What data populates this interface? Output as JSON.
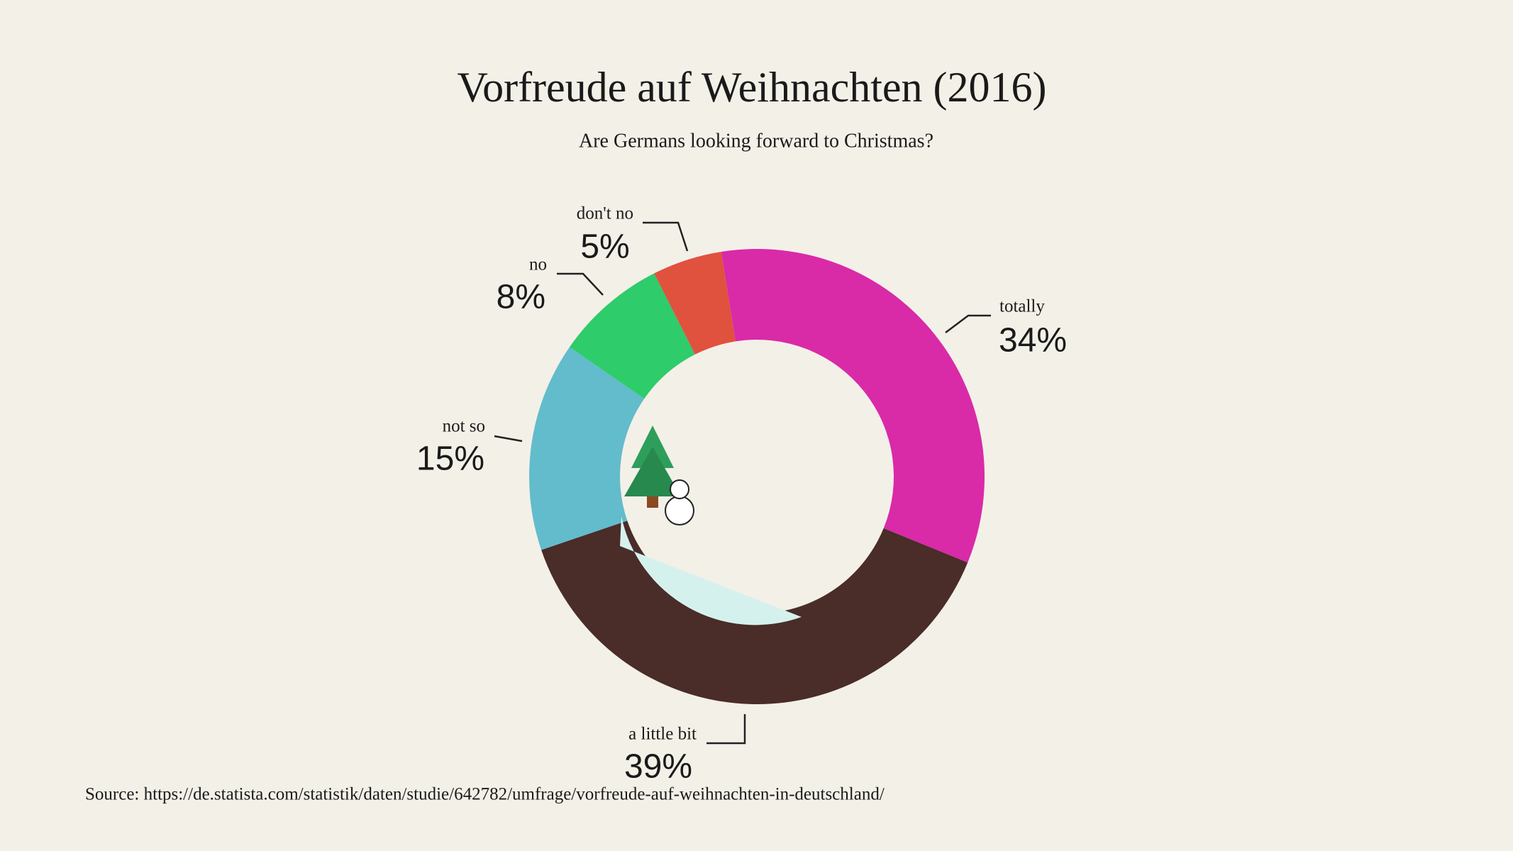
{
  "chart_data": {
    "type": "pie",
    "title": "Vorfreude auf Weihnachten (2016)",
    "subtitle": "Are Germans looking forward to Christmas?",
    "categories": [
      "totally",
      "a little bit",
      "not so",
      "no",
      "don't no"
    ],
    "values": [
      34,
      39,
      15,
      8,
      5
    ],
    "value_labels": [
      "34%",
      "39%",
      "15%",
      "8%",
      "5%"
    ],
    "colors": [
      "#d92aa8",
      "#4a2c28",
      "#62bccb",
      "#2ecc6a",
      "#e0513e"
    ],
    "source": "Source: https://de.statista.com/statistik/daten/studie/642782/umfrage/vorfreude-auf-weihnachten-in-deutschland/"
  }
}
